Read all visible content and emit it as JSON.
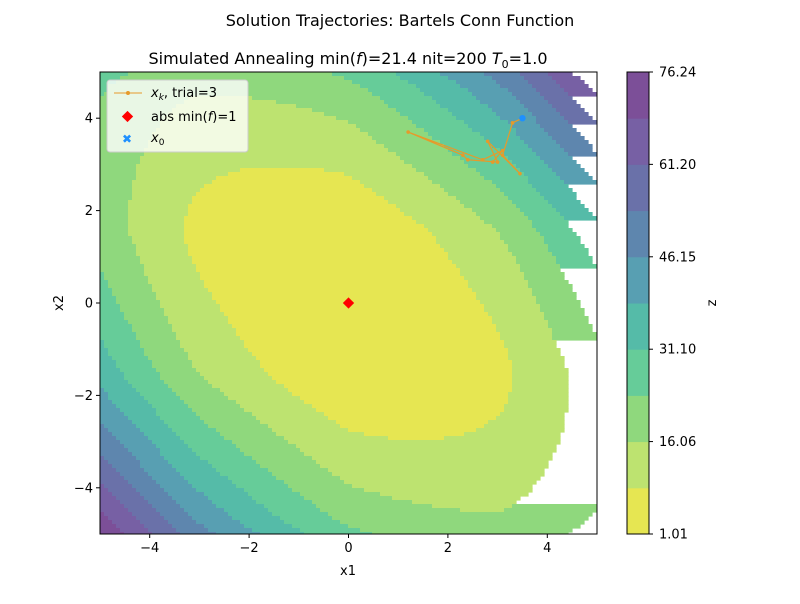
{
  "chart_data": {
    "type": "contour",
    "suptitle": "Solution Trajectories: Bartels Conn Function",
    "title_main": "Simulated Annealing min(",
    "title_f": "f",
    "title_mid": ")=21.4 nit=200 ",
    "title_T": "T",
    "title_sub": "0",
    "title_end": "=1.0",
    "xlabel": "x1",
    "ylabel": "x2",
    "xlim": [
      -5,
      5
    ],
    "ylim": [
      -5,
      5
    ],
    "x_ticks": [
      -4,
      -2,
      0,
      2,
      4
    ],
    "y_ticks": [
      -4,
      -2,
      0,
      2,
      4
    ],
    "x_tick_labels": [
      "−4",
      "−2",
      "0",
      "2",
      "4"
    ],
    "y_tick_labels": [
      "−4",
      "−2",
      "0",
      "2",
      "4"
    ],
    "colorbar": {
      "label": "z",
      "min": 1.01,
      "max": 76.24,
      "levels": [
        1.01,
        8.53,
        16.06,
        23.58,
        31.1,
        38.62,
        46.15,
        53.67,
        61.2,
        68.72,
        76.24
      ],
      "tick_values": [
        1.01,
        16.06,
        31.1,
        46.15,
        61.2,
        76.24
      ],
      "tick_labels": [
        "1.01",
        "16.06",
        "31.10",
        "46.15",
        "61.20",
        "76.24"
      ],
      "colors": [
        "#e6e652",
        "#bde370",
        "#8fd87d",
        "#66cc99",
        "#55bba8",
        "#589fb2",
        "#5e86ae",
        "#6a71a9",
        "#7760a4",
        "#7c4f98"
      ]
    },
    "trajectory": {
      "label_var": "x",
      "label_sub": "k",
      "label_rest": ", trial=3",
      "color": "#e69a2a",
      "points": [
        [
          3.5,
          4.0
        ],
        [
          3.3,
          3.9
        ],
        [
          3.1,
          3.2
        ],
        [
          3.45,
          2.8
        ],
        [
          2.8,
          3.5
        ],
        [
          3.0,
          3.05
        ],
        [
          2.4,
          3.1
        ],
        [
          2.3,
          3.2
        ],
        [
          1.2,
          3.7
        ],
        [
          2.7,
          3.1
        ],
        [
          3.1,
          3.3
        ],
        [
          2.9,
          3.05
        ]
      ]
    },
    "minimum": {
      "label": "abs min(",
      "label_f": "f",
      "label_end": ")=1",
      "x": 0,
      "y": 0,
      "color": "#ff0000"
    },
    "start": {
      "label_var": "x",
      "label_sub": "0",
      "x": 3.5,
      "y": 4.0,
      "color": "#1e90ff"
    }
  }
}
